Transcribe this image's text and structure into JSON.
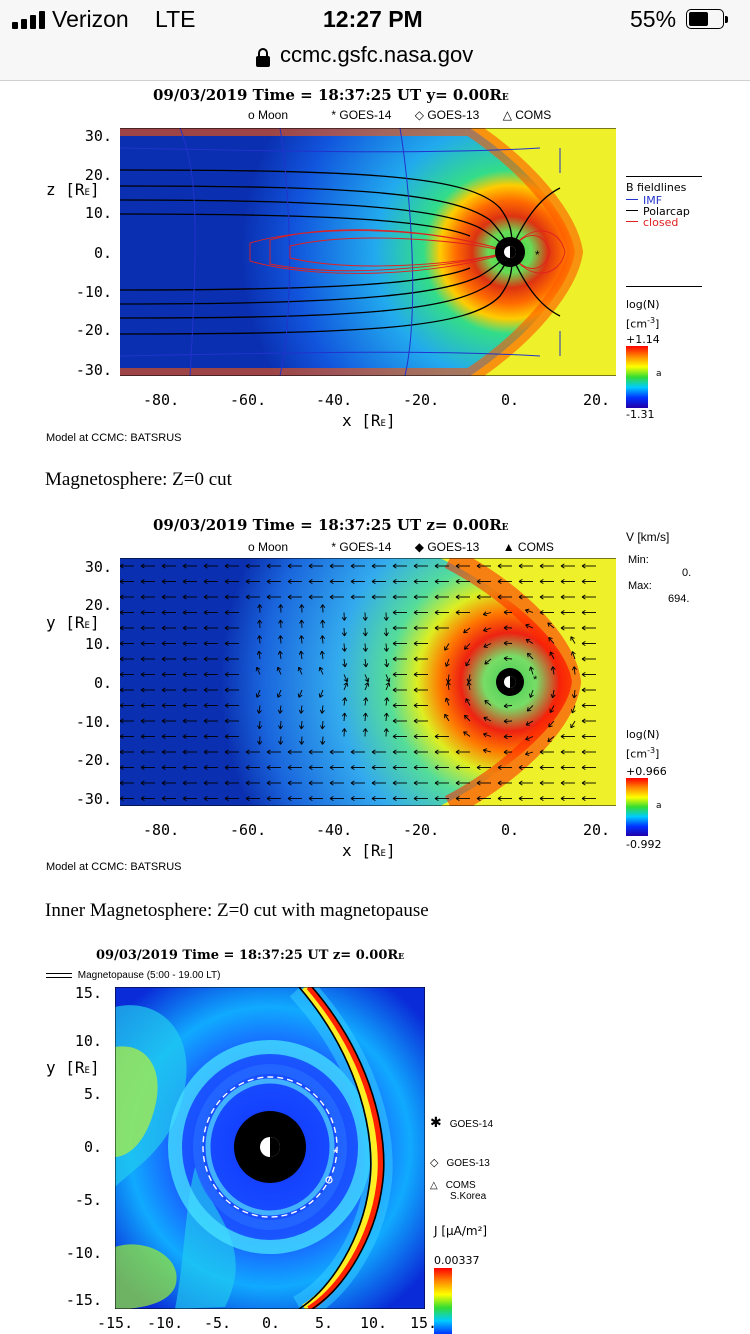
{
  "status_bar": {
    "carrier": "Verizon",
    "network": "LTE",
    "time": "12:27 PM",
    "battery": "55%"
  },
  "url_bar": {
    "domain": "ccmc.gsfc.nasa.gov"
  },
  "plot1": {
    "title": "09/03/2019 Time = 18:37:25 UT y= 0.00R",
    "title_sub": "E",
    "markers": [
      "o Moon",
      "* GOES-14",
      "◇ GOES-13",
      "△ COMS"
    ],
    "ylabel": "z [R",
    "ylabel_sub": "E",
    "ylabel_end": "]",
    "xlabel": "x [R",
    "xlabel_sub": "E",
    "xlabel_end": "]",
    "yticks": [
      "30.",
      "20.",
      "10.",
      "0.",
      "-10.",
      "-20.",
      "-30."
    ],
    "xticks": [
      "-80.",
      "-60.",
      "-40.",
      "-20.",
      "0.",
      "20."
    ],
    "legend_title": "B fieldlines",
    "legend_imf": "IMF",
    "legend_polarcap": "Polarcap",
    "legend_closed": "closed",
    "cbar_title": "log(N)",
    "cbar_unit": "[cm",
    "cbar_unit_sup": "-3",
    "cbar_unit_end": "]",
    "cbar_max": "+1.14",
    "cbar_min": "-1.31",
    "cbar_mid": "a",
    "model": "Model at CCMC: BATSRUS"
  },
  "caption1": "Magnetosphere: Z=0 cut",
  "plot2": {
    "title": "09/03/2019 Time = 18:37:25 UT z= 0.00R",
    "title_sub": "E",
    "markers": [
      "o Moon",
      "* GOES-14",
      "◆ GOES-13",
      "▲ COMS"
    ],
    "ylabel": "y [R",
    "ylabel_sub": "E",
    "ylabel_end": "]",
    "xlabel": "x [R",
    "xlabel_sub": "E",
    "xlabel_end": "]",
    "yticks": [
      "30.",
      "20.",
      "10.",
      "0.",
      "-10.",
      "-20.",
      "-30."
    ],
    "xticks": [
      "-80.",
      "-60.",
      "-40.",
      "-20.",
      "0.",
      "20."
    ],
    "vel_label": "V [km/s]",
    "min_label": "Min:",
    "min_value": "0.",
    "max_label": "Max:",
    "max_value": "694.",
    "cbar_title": "log(N)",
    "cbar_unit": "[cm",
    "cbar_unit_sup": "-3",
    "cbar_unit_end": "]",
    "cbar_max": "+0.966",
    "cbar_min": "-0.992",
    "cbar_mid": "a",
    "model": "Model at CCMC: BATSRUS"
  },
  "caption2": "Inner Magnetosphere: Z=0 cut with magnetopause",
  "plot3": {
    "title": "09/03/2019 Time = 18:37:25 UT z= 0.00R",
    "title_sub": "E",
    "magnetopause_label": "Magnetopause (5:00 - 19.00 LT)",
    "ylabel": "y [R",
    "ylabel_sub": "E",
    "ylabel_end": "]",
    "yticks": [
      "15.",
      "10.",
      "5.",
      "0.",
      "-5.",
      "-10.",
      "-15."
    ],
    "xticks": [
      "-15.",
      "-10.",
      "-5.",
      "0.",
      "5.",
      "10.",
      "15."
    ],
    "goes14": "GOES-14",
    "goes13": "GOES-13",
    "coms": "COMS",
    "coms_sub": "S.Korea",
    "cbar_title": "J [μA/m²]",
    "cbar_max": "0.00337"
  },
  "colors": {
    "accent_black": "#000000",
    "imf_blue": "#2233cc",
    "closed_red": "#e02020",
    "bar_bg": "#f7f7f7"
  }
}
